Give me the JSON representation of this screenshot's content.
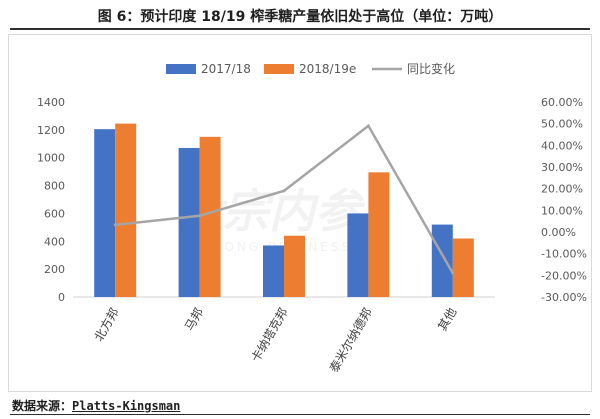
{
  "figure": {
    "title": "图 6：预计印度 18/19 榨季糖产量依旧处于高位（单位：万吨）",
    "watermark": "DAZONG BUSINESS",
    "source_label": "数据来源：",
    "source_value": "Platts-Kingsman"
  },
  "chart_data": {
    "type": "bar",
    "categories": [
      "北方邦",
      "马邦",
      "卡纳塔克邦",
      "泰米尔纳德邦",
      "其他"
    ],
    "series": [
      {
        "name": "2017/18",
        "type": "bar",
        "axis": "left",
        "color": "#4472C4",
        "values": [
          1205,
          1070,
          370,
          600,
          520
        ]
      },
      {
        "name": "2018/19e",
        "type": "bar",
        "axis": "left",
        "color": "#ED7D31",
        "values": [
          1245,
          1150,
          440,
          895,
          420
        ]
      },
      {
        "name": "同比变化",
        "type": "line",
        "axis": "right",
        "color": "#A5A5A5",
        "values": [
          3.3,
          7.5,
          19.0,
          49.0,
          -19.0
        ]
      }
    ],
    "y_left": {
      "min": 0,
      "max": 1400,
      "ticks": [
        "0",
        "200",
        "400",
        "600",
        "800",
        "1000",
        "1200",
        "1400"
      ]
    },
    "y_right": {
      "min": -30,
      "max": 60,
      "ticks": [
        "-30.00%",
        "-20.00%",
        "-10.00%",
        "0.00%",
        "10.00%",
        "20.00%",
        "30.00%",
        "40.00%",
        "50.00%",
        "60.00%"
      ]
    },
    "legend_position": "top",
    "grid": false
  }
}
